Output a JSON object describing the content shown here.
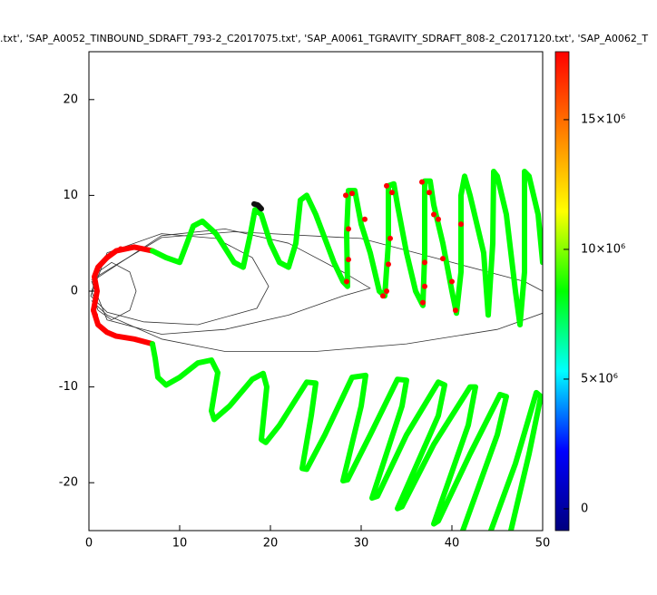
{
  "chart_data": {
    "type": "line",
    "title": ".txt', 'SAP_A0052_TINBOUND_SDRAFT_793-2_C2017075.txt', 'SAP_A0061_TGRAVITY_SDRAFT_808-2_C2017120.txt', 'SAP_A0062_T",
    "xlim": [
      0,
      50
    ],
    "ylim": [
      -25,
      25
    ],
    "xticks": [
      0,
      10,
      20,
      30,
      40,
      50
    ],
    "yticks": [
      -20,
      -10,
      0,
      10,
      20
    ],
    "series": [
      {
        "color": "#333333",
        "width": 0.8,
        "x": [
          0.3,
          1,
          2.5,
          4.5,
          5.2,
          4.5,
          2.5,
          1,
          0.3
        ],
        "y": [
          0,
          2,
          3,
          2,
          0,
          -2,
          -3,
          -2,
          0
        ]
      },
      {
        "color": "#333333",
        "width": 0.8,
        "x": [
          0.2,
          2,
          8,
          14,
          18,
          19.8,
          18.5,
          12,
          6,
          2,
          0.2
        ],
        "y": [
          -0.5,
          4,
          6,
          5.5,
          3.5,
          0.5,
          -1.8,
          -3.5,
          -3.2,
          -2.2,
          -0.5
        ]
      },
      {
        "color": "#333333",
        "width": 0.8,
        "x": [
          0.3,
          8,
          15,
          22,
          28,
          31,
          28,
          22,
          15,
          8,
          2,
          0.3
        ],
        "y": [
          1,
          5.8,
          6.5,
          5,
          2,
          0.3,
          -0.5,
          -2.5,
          -4,
          -4.5,
          -3,
          1
        ]
      },
      {
        "color": "#333333",
        "width": 0.8,
        "x": [
          0.3,
          8,
          16,
          30,
          40,
          48,
          50,
          50,
          45,
          35,
          25,
          15,
          8,
          2,
          0.3
        ],
        "y": [
          1.2,
          5.6,
          6.2,
          5.5,
          3,
          1,
          0,
          -2.3,
          -4,
          -5.5,
          -6.3,
          -6.3,
          -5,
          -2.5,
          -1
        ]
      },
      {
        "color": "#ff0000",
        "width": 6,
        "x": [
          0.5,
          0.9,
          0.6,
          1,
          2,
          3,
          5,
          7
        ],
        "y": [
          -2,
          0,
          1.5,
          2.5,
          3.5,
          4.2,
          4.6,
          4.2
        ]
      },
      {
        "color": "#00ff00",
        "width": 6,
        "x": [
          7,
          8.5,
          10,
          10.8,
          11.5,
          12.5,
          14,
          16,
          17,
          17.8,
          18.3,
          19,
          20,
          21,
          22,
          22.8,
          23.3,
          24,
          25,
          27,
          28,
          28.5,
          28.4,
          28.6,
          29.3,
          30,
          31,
          32,
          32.6,
          33,
          33,
          33.6,
          34,
          35,
          36,
          36.8,
          37,
          37,
          37.6,
          38,
          39,
          40,
          40.5,
          41,
          41,
          41.4,
          42,
          43.5,
          44,
          44.5,
          44.6,
          45,
          46,
          47,
          47.5,
          48,
          48,
          48.5,
          49.5,
          50
        ],
        "y": [
          4.2,
          3.5,
          3,
          5,
          6.8,
          7.3,
          6,
          3,
          2.5,
          6,
          8.5,
          8,
          5,
          3,
          2.5,
          5,
          9.5,
          10,
          8,
          3,
          1,
          0.5,
          6,
          10.5,
          10.5,
          7,
          4,
          0,
          -0.5,
          5,
          11,
          11.2,
          9,
          4,
          0,
          -1.5,
          4,
          11.5,
          11.5,
          9,
          5,
          0,
          -2.3,
          2,
          10,
          12,
          10,
          4,
          -2.5,
          5,
          12.5,
          12,
          8,
          0,
          -3.5,
          2,
          12.5,
          12,
          8,
          3
        ]
      },
      {
        "color": "#111111",
        "width": 6,
        "x": [
          18.2,
          18.6,
          19
        ],
        "y": [
          9.1,
          9,
          8.6
        ]
      },
      {
        "color": "#ff0000",
        "width": 6,
        "x": [
          0.5,
          1,
          2,
          3,
          5,
          7
        ],
        "y": [
          -2,
          -3.5,
          -4.3,
          -4.7,
          -5,
          -5.5
        ]
      },
      {
        "color": "#00ff00",
        "width": 6,
        "x": [
          7,
          7.3,
          7.6,
          8.5,
          10,
          12,
          13.5,
          14.2,
          13.5,
          13.8,
          15.5,
          18,
          19.2,
          19.6,
          19,
          19.5,
          21,
          24,
          25,
          24.5,
          23.5,
          24,
          26,
          29,
          30.5,
          30,
          28,
          28.5,
          31,
          34,
          35,
          34.5,
          31.2,
          31.8,
          35,
          38.5,
          39.2,
          38.5,
          34,
          34.5,
          38,
          42,
          42.6,
          41.8,
          38,
          38.5,
          42,
          45.3,
          46,
          45,
          41.2,
          null,
          44.3,
          47,
          49.3,
          49.8,
          48.5,
          46.5
        ],
        "y": [
          -5.5,
          -7,
          -9,
          -9.8,
          -9,
          -7.5,
          -7.2,
          -8.5,
          -12.5,
          -13.4,
          -12,
          -9.2,
          -8.6,
          -10,
          -15.5,
          -15.8,
          -14,
          -9.5,
          -9.6,
          -13,
          -18.5,
          -18.6,
          -15,
          -9,
          -8.8,
          -12,
          -19.8,
          -19.7,
          -15,
          -9.2,
          -9.3,
          -12,
          -21.6,
          -21.4,
          -15,
          -9.5,
          -9.8,
          -13,
          -22.7,
          -22.5,
          -16,
          -10,
          -10,
          -14,
          -24.3,
          -24,
          -17,
          -10.8,
          -11,
          -15,
          -25,
          null,
          -25,
          -18,
          -10.6,
          -11,
          -17,
          -25
        ]
      },
      {
        "color": "#ff0000",
        "marker": true,
        "x": [
          2,
          3.5,
          28.3,
          29,
          30.4,
          28.6,
          28.6,
          28.4,
          32.8,
          33.4,
          33.2,
          33,
          32.8,
          32.4,
          36.7,
          37.5,
          38.5,
          37,
          37,
          36.8,
          38,
          39,
          40,
          40.4,
          41,
          0.7
        ],
        "y": [
          3.5,
          4.4,
          10,
          10.2,
          7.5,
          6.5,
          3.3,
          1,
          11,
          10.3,
          5.5,
          2.8,
          0,
          -0.5,
          11.4,
          10.3,
          7.5,
          3,
          0.5,
          -1.2,
          8,
          3.4,
          1,
          -2,
          7,
          -2.5
        ]
      }
    ],
    "colorbar": {
      "clim": [
        -840000,
        17620000
      ],
      "colormap": [
        "#00007f",
        "#0000ff",
        "#00ffff",
        "#00ff00",
        "#ffff00",
        "#ff7f00",
        "#ff0000"
      ],
      "ticks": [
        0,
        {
          "value": 5000000,
          "label": "5×10⁶"
        },
        {
          "value": 10000000,
          "label": "10×10⁶"
        },
        {
          "value": 15000000,
          "label": "15×10⁶"
        }
      ]
    }
  }
}
